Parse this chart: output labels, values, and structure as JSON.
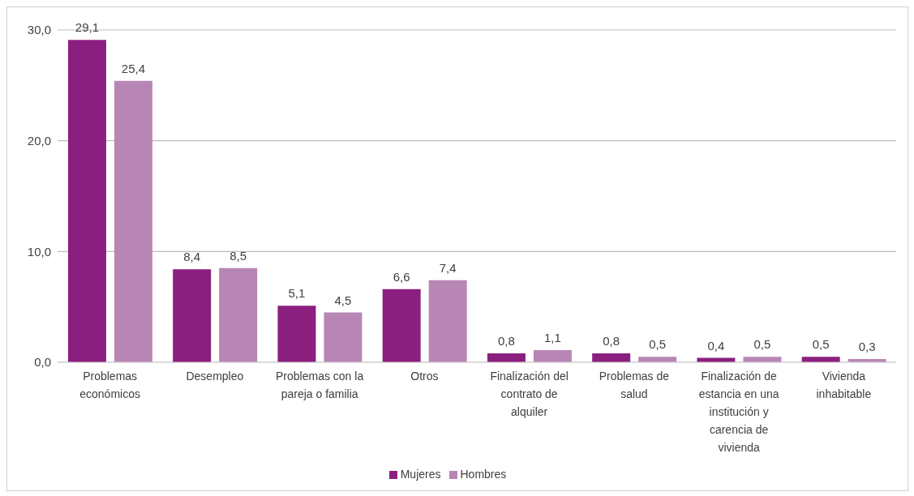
{
  "chart_data": {
    "type": "bar",
    "categories": [
      "Problemas económicos",
      "Desempleo",
      "Problemas con la pareja o familia",
      "Otros",
      "Finalización del contrato de alquiler",
      "Problemas de salud",
      "Finalización de estancia en una institución y carencia de vivienda",
      "Vivienda inhabitable"
    ],
    "series": [
      {
        "name": "Mujeres",
        "color": "#8b1f7f",
        "values": [
          29.1,
          8.4,
          5.1,
          6.6,
          0.8,
          0.8,
          0.4,
          0.5
        ],
        "value_labels": [
          "29,1",
          "8,4",
          "5,1",
          "6,6",
          "0,8",
          "0,8",
          "0,4",
          "0,5"
        ]
      },
      {
        "name": "Hombres",
        "color": "#b886b5",
        "values": [
          25.4,
          8.5,
          4.5,
          7.4,
          1.1,
          0.5,
          0.5,
          0.3
        ],
        "value_labels": [
          "25,4",
          "8,5",
          "4,5",
          "7,4",
          "1,1",
          "0,5",
          "0,5",
          "0,3"
        ]
      }
    ],
    "ylim": [
      0,
      30
    ],
    "yticks": [
      {
        "value": 0,
        "label": "0,0"
      },
      {
        "value": 10,
        "label": "10,0"
      },
      {
        "value": 20,
        "label": "20,0"
      },
      {
        "value": 30,
        "label": "30,0"
      }
    ],
    "grid": "y",
    "legend": "bottom"
  }
}
